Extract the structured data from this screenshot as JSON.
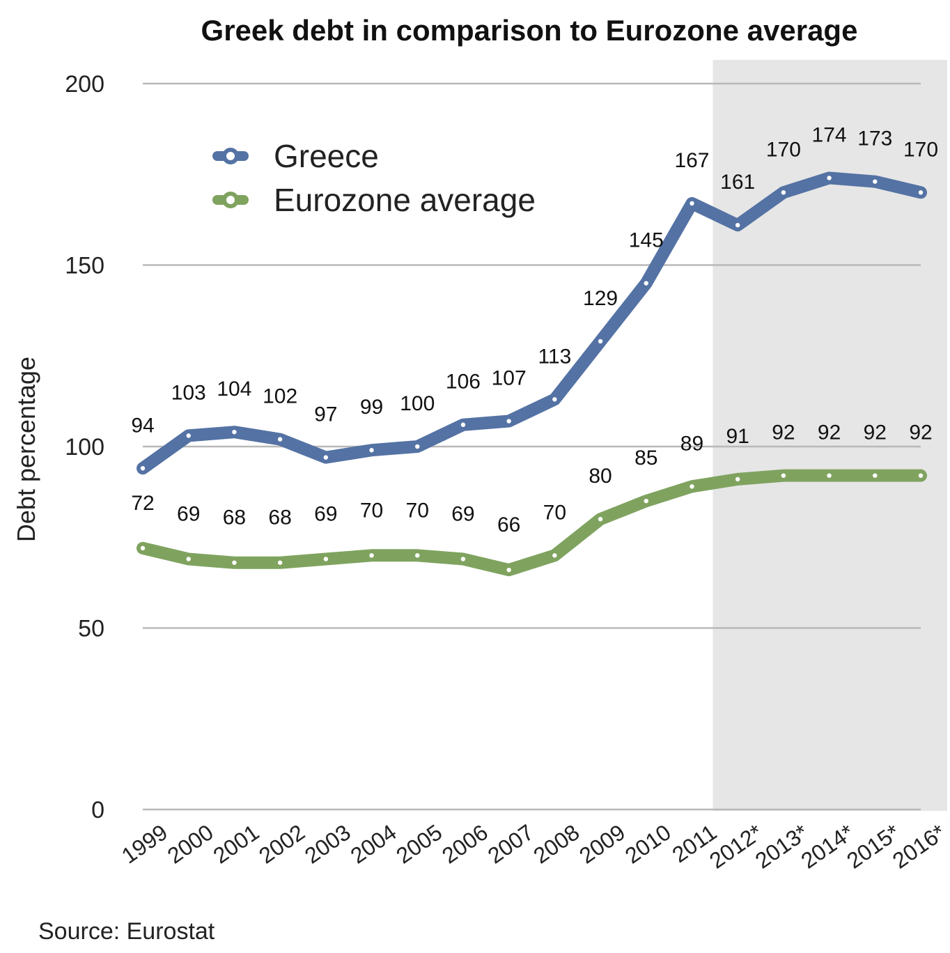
{
  "chart_data": {
    "type": "line",
    "title": "Greek debt in comparison to Eurozone average",
    "xlabel": "",
    "ylabel": "Debt percentage",
    "source": "Source: Eurostat",
    "categories": [
      "1999",
      "2000",
      "2001",
      "2002",
      "2003",
      "2004",
      "2005",
      "2006",
      "2007",
      "2008",
      "2009",
      "2010",
      "2011",
      "2012*",
      "2013*",
      "2014*",
      "2015*",
      "2016*"
    ],
    "ylim": [
      0,
      200
    ],
    "yticks": [
      0,
      50,
      100,
      150,
      200
    ],
    "grid": true,
    "legend_position": "top-left",
    "shaded_region": {
      "from": "2011",
      "to": "2016*",
      "color": "#e6e6e6"
    },
    "series": [
      {
        "name": "Greece",
        "color": "#5472a4",
        "values": [
          94,
          103,
          104,
          102,
          97,
          99,
          100,
          106,
          107,
          113,
          129,
          145,
          167,
          161,
          170,
          174,
          173,
          170
        ]
      },
      {
        "name": "Eurozone average",
        "color": "#7fa35f",
        "values": [
          72,
          69,
          68,
          68,
          69,
          70,
          70,
          69,
          66,
          70,
          80,
          85,
          89,
          91,
          92,
          92,
          92,
          92
        ]
      }
    ]
  }
}
